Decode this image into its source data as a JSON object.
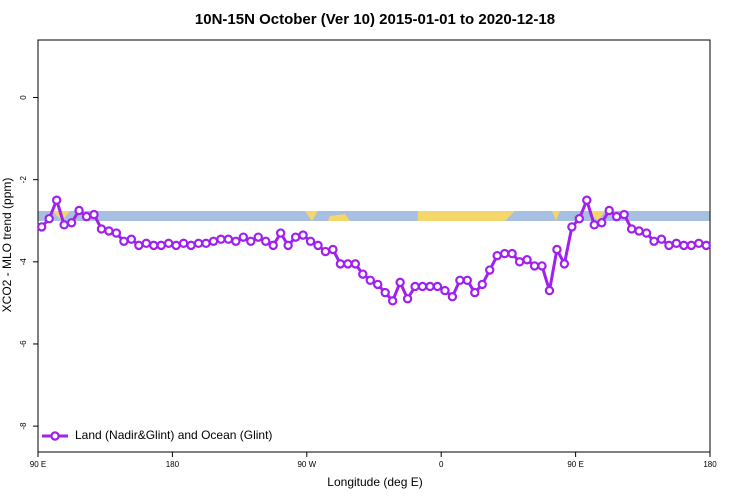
{
  "chart_data": {
    "type": "line",
    "title": "10N-15N October (Ver 10)   2015-01-01 to 2020-12-18",
    "x_label": "Longitude (deg E)",
    "y_label": "XCO2 - MLO trend (ppm)",
    "xlim": [
      90,
      540
    ],
    "xticks": [
      {
        "value": 90,
        "label": "90 E"
      },
      180,
      {
        "value": 270,
        "label": "90 W"
      },
      {
        "value": 360,
        "label": "0"
      },
      {
        "value": 450,
        "label": "90 E"
      },
      {
        "value": 540,
        "label": "180"
      }
    ],
    "ylim": [
      -8.63,
      1.4
    ],
    "yticks": [
      0,
      -2,
      -4,
      -6,
      -8
    ],
    "legend": "bottom-left",
    "x": [
      92.5,
      97.5,
      102.5,
      107.5,
      112.5,
      117.5,
      122.5,
      127.5,
      132.5,
      137.5,
      142.5,
      147.5,
      152.5,
      157.5,
      162.5,
      167.5,
      172.5,
      177.5,
      182.5,
      187.5,
      192.5,
      197.5,
      202.5,
      207.5,
      212.5,
      217.5,
      222.5,
      227.5,
      232.5,
      237.5,
      242.5,
      247.5,
      252.5,
      257.5,
      262.5,
      267.5,
      272.5,
      277.5,
      282.5,
      287.5,
      292.5,
      297.5,
      302.5,
      307.5,
      312.5,
      317.5,
      322.5,
      327.5,
      332.5,
      337.5,
      342.5,
      347.5,
      352.5,
      357.5,
      362.5,
      367.5,
      372.5,
      377.5,
      382.5,
      387.5,
      392.5,
      397.5,
      402.5,
      407.5,
      412.5,
      417.5,
      422.5,
      427.5,
      432.5,
      437.5,
      442.5,
      447.5,
      452.5,
      457.5,
      462.5,
      467.5,
      472.5,
      477.5,
      482.5,
      487.5,
      492.5,
      497.5,
      502.5,
      507.5,
      512.5,
      517.5,
      522.5,
      527.5,
      532.5,
      537.5
    ],
    "series": [
      {
        "name": "Land (Nadir&Glint) and Ocean (Glint)",
        "color": "#a020f0",
        "values": [
          -3.15,
          -2.95,
          -2.5,
          -3.1,
          -3.05,
          -2.75,
          -2.9,
          -2.85,
          -3.2,
          -3.25,
          -3.3,
          -3.5,
          -3.45,
          -3.6,
          -3.55,
          -3.6,
          -3.6,
          -3.55,
          -3.6,
          -3.55,
          -3.6,
          -3.55,
          -3.55,
          -3.5,
          -3.45,
          -3.45,
          -3.5,
          -3.4,
          -3.5,
          -3.4,
          -3.5,
          -3.6,
          -3.3,
          -3.6,
          -3.4,
          -3.35,
          -3.5,
          -3.6,
          -3.75,
          -3.7,
          -4.05,
          -4.05,
          -4.05,
          -4.3,
          -4.45,
          -4.55,
          -4.75,
          -4.95,
          -4.5,
          -4.9,
          -4.6,
          -4.6,
          -4.6,
          -4.6,
          -4.7,
          -4.85,
          -4.45,
          -4.45,
          -4.75,
          -4.55,
          -4.2,
          -3.85,
          -3.8,
          -3.8,
          -4.0,
          -3.95,
          -4.1,
          -4.1,
          -4.7,
          -3.7,
          -4.05,
          -3.15,
          -2.95,
          -2.5,
          -3.1,
          -3.05,
          -2.75,
          -2.9,
          -2.85,
          -3.2,
          -3.25,
          -3.3,
          -3.5,
          -3.45,
          -3.6,
          -3.55,
          -3.6,
          -3.6,
          -3.55,
          -3.6
        ]
      }
    ]
  }
}
